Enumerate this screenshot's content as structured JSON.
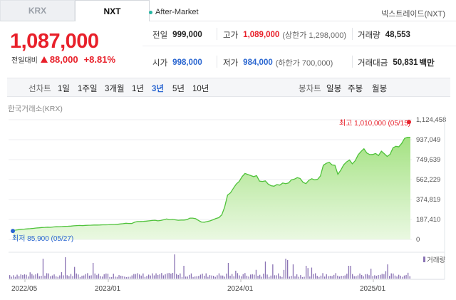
{
  "tabs": [
    {
      "label": "KRX",
      "active": false
    },
    {
      "label": "NXT",
      "active": true
    }
  ],
  "after_market": "After-Market",
  "nxt_time": "넥스트레이드(NXT)",
  "price": "1,087,000",
  "change": {
    "label": "전일대비",
    "amount": "88,000",
    "percent": "+8.81%"
  },
  "stats": {
    "prev_close": {
      "label": "전일",
      "value": "999,000"
    },
    "high": {
      "label": "고가",
      "value": "1,089,000",
      "limit": "(상한가 1,298,000)"
    },
    "volume": {
      "label": "거래량",
      "value": "48,553"
    },
    "open": {
      "label": "시가",
      "value": "998,000"
    },
    "low": {
      "label": "저가",
      "value": "984,000",
      "limit": "(하한가 700,000)"
    },
    "amount": {
      "label": "거래대금",
      "value": "50,831",
      "unit": "백만"
    }
  },
  "periods": {
    "line_label": "선차트",
    "line_options": [
      "1일",
      "1주일",
      "3개월",
      "1년",
      "3년",
      "5년",
      "10년"
    ],
    "selected": "3년",
    "candle_label": "봉차트",
    "candle_options": [
      "일봉",
      "주봉",
      "월봉"
    ]
  },
  "source": "한국거래소(KRX)",
  "chart_data": {
    "type": "area",
    "y_ticks": [
      "1,124,458",
      "937,049",
      "749,639",
      "562,229",
      "374,819",
      "187,410",
      "0"
    ],
    "ylim": [
      0,
      1124458
    ],
    "x_ticks": [
      "2022/05",
      "2023/01",
      "2024/01",
      "2025/01"
    ],
    "high_annotation": "최고 1,010,000 (05/15)",
    "low_annotation": "최저 85,900 (05/27)",
    "volume_legend": "거래량",
    "series_values": [
      85900,
      88000,
      92000,
      96000,
      97000,
      99000,
      101000,
      104000,
      107000,
      109000,
      112000,
      113000,
      115000,
      114000,
      117000,
      119000,
      120000,
      121000,
      123000,
      124000,
      125000,
      128000,
      130000,
      131000,
      130000,
      132000,
      133000,
      134000,
      135000,
      135000,
      136000,
      137000,
      137000,
      138000,
      140000,
      140000,
      142000,
      145000,
      148000,
      152000,
      150000,
      150000,
      162000,
      168000,
      169000,
      170000,
      172000,
      175000,
      178000,
      180000,
      175000,
      178000,
      185000,
      192000,
      185000,
      188000,
      184000,
      180000,
      182000,
      182000,
      186000,
      200000,
      200000,
      195000,
      178000,
      163000,
      162000,
      168000,
      175000,
      185000,
      197000,
      205000,
      231000,
      304000,
      416000,
      438000,
      480000,
      520000,
      545000,
      590000,
      620000,
      610000,
      600000,
      590000,
      600000,
      548000,
      545000,
      550000,
      520000,
      505000,
      500000,
      515000,
      510000,
      530000,
      524000,
      530000,
      560000,
      566000,
      580000,
      573000,
      537000,
      524000,
      555000,
      570000,
      560000,
      564000,
      596000,
      697000,
      715000,
      725000,
      700000,
      696000,
      612000,
      650000,
      700000,
      728000,
      746000,
      710000,
      740000,
      795000,
      827000,
      852000,
      812000,
      797000,
      798000,
      808000,
      788000,
      829000,
      806000,
      780000,
      800000,
      860000,
      875000,
      870000,
      902000,
      950000,
      960000,
      960000
    ]
  }
}
